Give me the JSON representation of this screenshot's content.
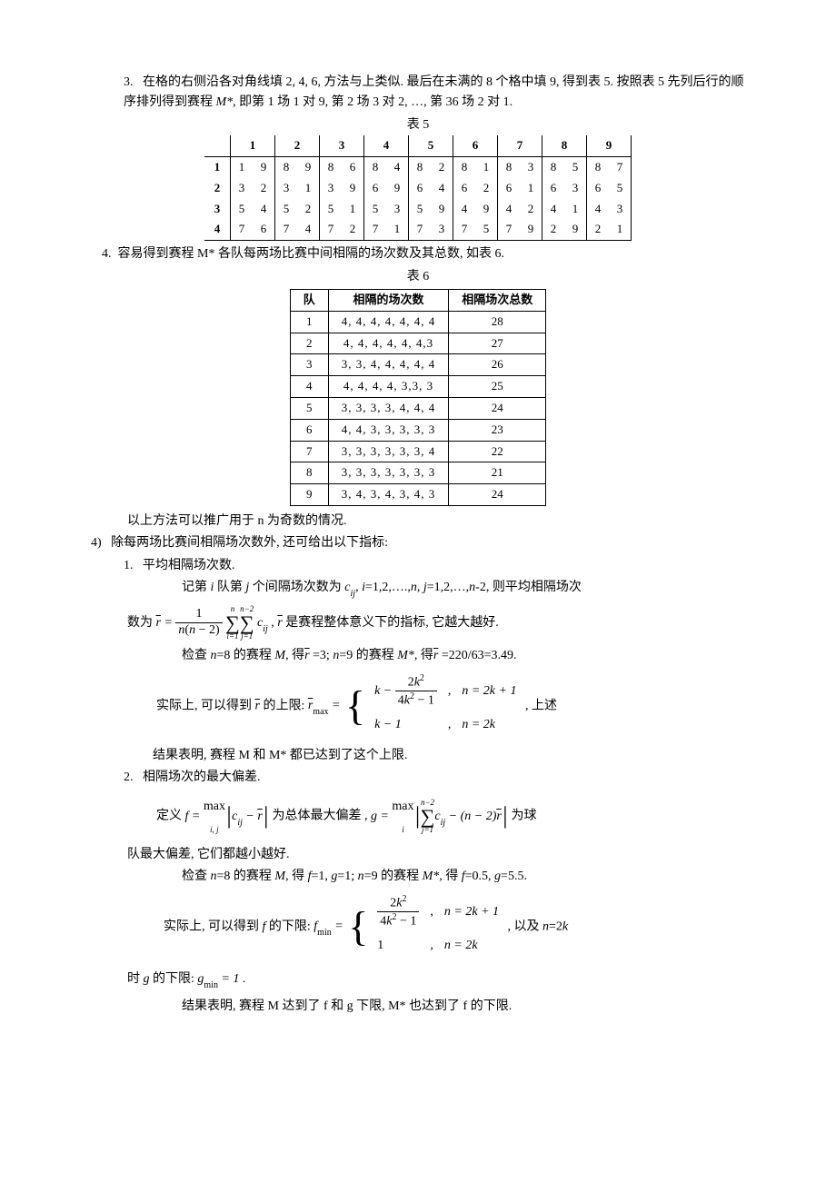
{
  "section3": {
    "num": "3.",
    "text1": "在格的右侧沿各对角线填 2, 4, 6, 方法与上类似. 最后在未满的 8 个格中填 9, 得到表 5. 按照表 5 先列后行的顺序排列得到赛程 ",
    "mstar": "M*",
    "text2": ", 即第 1 场 1 对 9, 第 2 场 3 对 2, …, 第 36 场 2 对 1."
  },
  "table5": {
    "caption": "表 5",
    "col_headers": [
      "1",
      "2",
      "3",
      "4",
      "5",
      "6",
      "7",
      "8",
      "9"
    ],
    "row_headers": [
      "1",
      "2",
      "3",
      "4"
    ],
    "rows": [
      [
        [
          "1",
          "9"
        ],
        [
          "8",
          "9"
        ],
        [
          "8",
          "6"
        ],
        [
          "8",
          "4"
        ],
        [
          "8",
          "2"
        ],
        [
          "8",
          "1"
        ],
        [
          "8",
          "3"
        ],
        [
          "8",
          "5"
        ],
        [
          "8",
          "7"
        ]
      ],
      [
        [
          "3",
          "2"
        ],
        [
          "3",
          "1"
        ],
        [
          "3",
          "9"
        ],
        [
          "6",
          "9"
        ],
        [
          "6",
          "4"
        ],
        [
          "6",
          "2"
        ],
        [
          "6",
          "1"
        ],
        [
          "6",
          "3"
        ],
        [
          "6",
          "5"
        ]
      ],
      [
        [
          "5",
          "4"
        ],
        [
          "5",
          "2"
        ],
        [
          "5",
          "1"
        ],
        [
          "5",
          "3"
        ],
        [
          "5",
          "9"
        ],
        [
          "4",
          "9"
        ],
        [
          "4",
          "2"
        ],
        [
          "4",
          "1"
        ],
        [
          "4",
          "3"
        ]
      ],
      [
        [
          "7",
          "6"
        ],
        [
          "7",
          "4"
        ],
        [
          "7",
          "2"
        ],
        [
          "7",
          "1"
        ],
        [
          "7",
          "3"
        ],
        [
          "7",
          "5"
        ],
        [
          "7",
          "9"
        ],
        [
          "2",
          "9"
        ],
        [
          "2",
          "1"
        ]
      ]
    ]
  },
  "section4_intro": {
    "num": "4.",
    "text": "容易得到赛程 M* 各队每两场比赛中间相隔的场次数及其总数, 如表 6."
  },
  "table6": {
    "caption": "表 6",
    "headers": [
      "队",
      "相隔的场次数",
      "相隔场次总数"
    ],
    "rows": [
      [
        "1",
        "4, 4, 4, 4, 4, 4, 4",
        "28"
      ],
      [
        "2",
        "4, 4, 4, 4, 4, 4,3",
        "27"
      ],
      [
        "3",
        "3, 3, 4, 4, 4, 4, 4",
        "26"
      ],
      [
        "4",
        "4, 4, 4, 4, 3,3, 3",
        "25"
      ],
      [
        "5",
        "3, 3, 3, 3, 4, 4, 4",
        "24"
      ],
      [
        "6",
        "4, 4, 3, 3, 3, 3, 3",
        "23"
      ],
      [
        "7",
        "3, 3, 3, 3, 3, 3, 4",
        "22"
      ],
      [
        "8",
        "3, 3, 3, 3, 3, 3, 3",
        "21"
      ],
      [
        "9",
        "3, 4, 3, 4, 3, 4, 3",
        "24"
      ]
    ]
  },
  "after_t6": "以上方法可以推广用于 n 为奇数的情况.",
  "sec4": {
    "num": "4)",
    "text": "除每两场比赛间相隔场次数外, 还可给出以下指标:"
  },
  "item1": {
    "num": "1.",
    "title": "平均相隔场次数.",
    "line1a": "记第 ",
    "line1b": " 队第 ",
    "line1c": " 个间隔场次数为 ",
    "line1d": ", ",
    "line1e": "=1,2,….,",
    "line1f": ", ",
    "line1g": "=1,2,…,",
    "line1h": "-2, 则平均相隔场次",
    "line2a": "数为",
    "line2b": " , ",
    "line2c": " 是赛程整体意义下的指标, 它越大越好.",
    "line3a": "检查 ",
    "line3b": "=8 的赛程 ",
    "line3c": ", 得",
    "line3d": " =3; ",
    "line3e": "=9 的赛程 ",
    "line3f": ", 得",
    "line3g": " =220/63=3.49.",
    "line4a": "实际上, 可以得到 ",
    "line4b": " 的上限: ",
    "line4c": " , 上述",
    "line5": "结果表明, 赛程 M 和 M* 都已达到了这个上限.",
    "rmax_case1_cond": "n = 2k + 1",
    "rmax_case2_val": "k − 1",
    "rmax_case2_cond": "n = 2k"
  },
  "item2": {
    "num": "2.",
    "title": "相隔场次的最大偏差.",
    "line1a": "定义 ",
    "line1b": " 为总体最大偏差  ,  ",
    "line1c": " 为球",
    "line2": "队最大偏差, 它们都越小越好.",
    "line3a": "检查 ",
    "line3b": "=8 的赛程 ",
    "line3c": ", 得 ",
    "line3d": "=1, ",
    "line3e": "=1; ",
    "line3f": "=9 的赛程 ",
    "line3g": ", 得 ",
    "line3h": "=0.5, ",
    "line3i": "=5.5.",
    "line4a": "实际上, 可以得到 ",
    "line4b": " 的下限: ",
    "line4c": " , 以及 ",
    "line4d": "=2",
    "fmin_case1_cond": "n = 2k + 1",
    "fmin_case2_val": "1",
    "fmin_case2_cond": "n = 2k",
    "line5a": "时 ",
    "line5b": " 的下限: ",
    "line5c": " .",
    "line6": "结果表明, 赛程 M 达到了 f 和  g  下限,   M* 也达到了 f 的下限."
  },
  "sym": {
    "i": "i",
    "j": "j",
    "n": "n",
    "M": "M",
    "Mstar": "M*",
    "c": "c",
    "ij": "ij",
    "r": "r",
    "rbar": "r",
    "k": "k",
    "f": "f",
    "g": "g",
    "max": "max",
    "min": "min"
  }
}
